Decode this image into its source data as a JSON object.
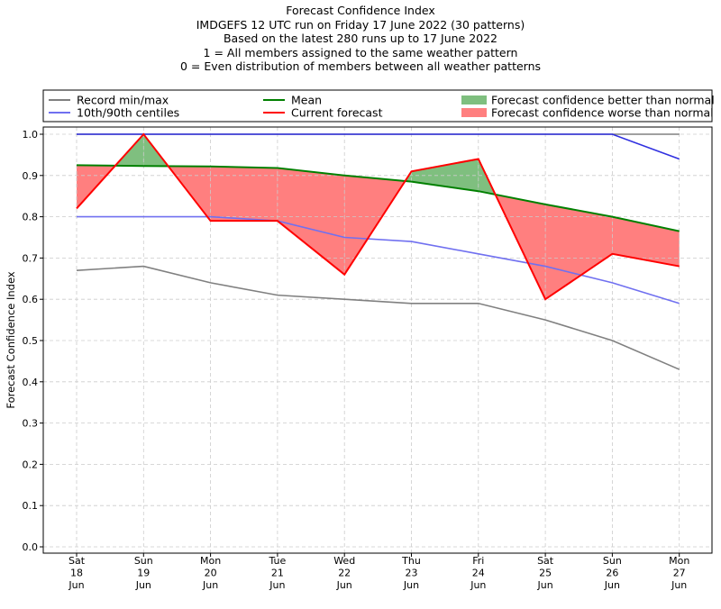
{
  "chart_data": {
    "type": "line",
    "title_lines": [
      "Forecast Confidence Index",
      "IMDGEFS 12 UTC run on Friday 17 June 2022 (30 patterns)",
      "Based on the latest 280 runs up to 17 June 2022",
      "1 = All members assigned to the same weather pattern",
      "0 = Even distribution of members between all weather patterns"
    ],
    "ylabel": "Forecast Confidence Index",
    "xlabel": "",
    "ylim": [
      0,
      1.0
    ],
    "yticks": [
      "0.0",
      "0.1",
      "0.2",
      "0.3",
      "0.4",
      "0.5",
      "0.6",
      "0.7",
      "0.8",
      "0.9",
      "1.0"
    ],
    "grid": true,
    "categories": [
      [
        "Sat",
        "18",
        "Jun"
      ],
      [
        "Sun",
        "19",
        "Jun"
      ],
      [
        "Mon",
        "20",
        "Jun"
      ],
      [
        "Tue",
        "21",
        "Jun"
      ],
      [
        "Wed",
        "22",
        "Jun"
      ],
      [
        "Thu",
        "23",
        "Jun"
      ],
      [
        "Fri",
        "24",
        "Jun"
      ],
      [
        "Sat",
        "25",
        "Jun"
      ],
      [
        "Sun",
        "26",
        "Jun"
      ],
      [
        "Mon",
        "27",
        "Jun"
      ]
    ],
    "series": [
      {
        "key": "record_min",
        "name": "Record min/max",
        "color": "#808080",
        "values": [
          0.67,
          0.68,
          0.64,
          0.61,
          0.6,
          0.59,
          0.59,
          0.55,
          0.5,
          0.43
        ]
      },
      {
        "key": "record_max",
        "name": "Record min/max",
        "color": "#808080",
        "values": [
          1.0,
          1.0,
          1.0,
          1.0,
          1.0,
          1.0,
          1.0,
          1.0,
          1.0,
          1.0
        ]
      },
      {
        "key": "p10",
        "name": "10th/90th centiles",
        "color": "#7070f0",
        "values": [
          0.8,
          0.8,
          0.8,
          0.79,
          0.75,
          0.74,
          0.71,
          0.68,
          0.64,
          0.59
        ]
      },
      {
        "key": "p90",
        "name": "10th/90th centiles",
        "color": "#3030e0",
        "values": [
          1.0,
          1.0,
          1.0,
          1.0,
          1.0,
          1.0,
          1.0,
          1.0,
          1.0,
          0.94
        ]
      },
      {
        "key": "mean",
        "name": "Mean",
        "color": "#008000",
        "values": [
          0.925,
          0.923,
          0.922,
          0.918,
          0.9,
          0.885,
          0.862,
          0.83,
          0.8,
          0.765
        ]
      },
      {
        "key": "current",
        "name": "Current forecast",
        "color": "#ff0000",
        "values": [
          0.82,
          1.0,
          0.79,
          0.79,
          0.66,
          0.91,
          0.94,
          0.6,
          0.71,
          0.68
        ]
      }
    ],
    "fills": {
      "better": {
        "name": "Forecast confidence better than normal",
        "color": "#7fbf7f"
      },
      "worse": {
        "name": "Forecast confidence worse than normal",
        "color": "#ff7f7f"
      }
    },
    "legend": {
      "placement": "top",
      "entries": [
        {
          "label": "Record min/max",
          "kind": "line",
          "color": "#808080"
        },
        {
          "label": "10th/90th centiles",
          "kind": "line",
          "color": "#7070f0"
        },
        {
          "label": "Mean",
          "kind": "line",
          "color": "#008000"
        },
        {
          "label": "Current forecast",
          "kind": "line",
          "color": "#ff0000"
        },
        {
          "label": "Forecast confidence better than normal",
          "kind": "patch",
          "color": "#7fbf7f"
        },
        {
          "label": "Forecast confidence worse than normal",
          "kind": "patch",
          "color": "#ff7f7f"
        }
      ]
    }
  }
}
